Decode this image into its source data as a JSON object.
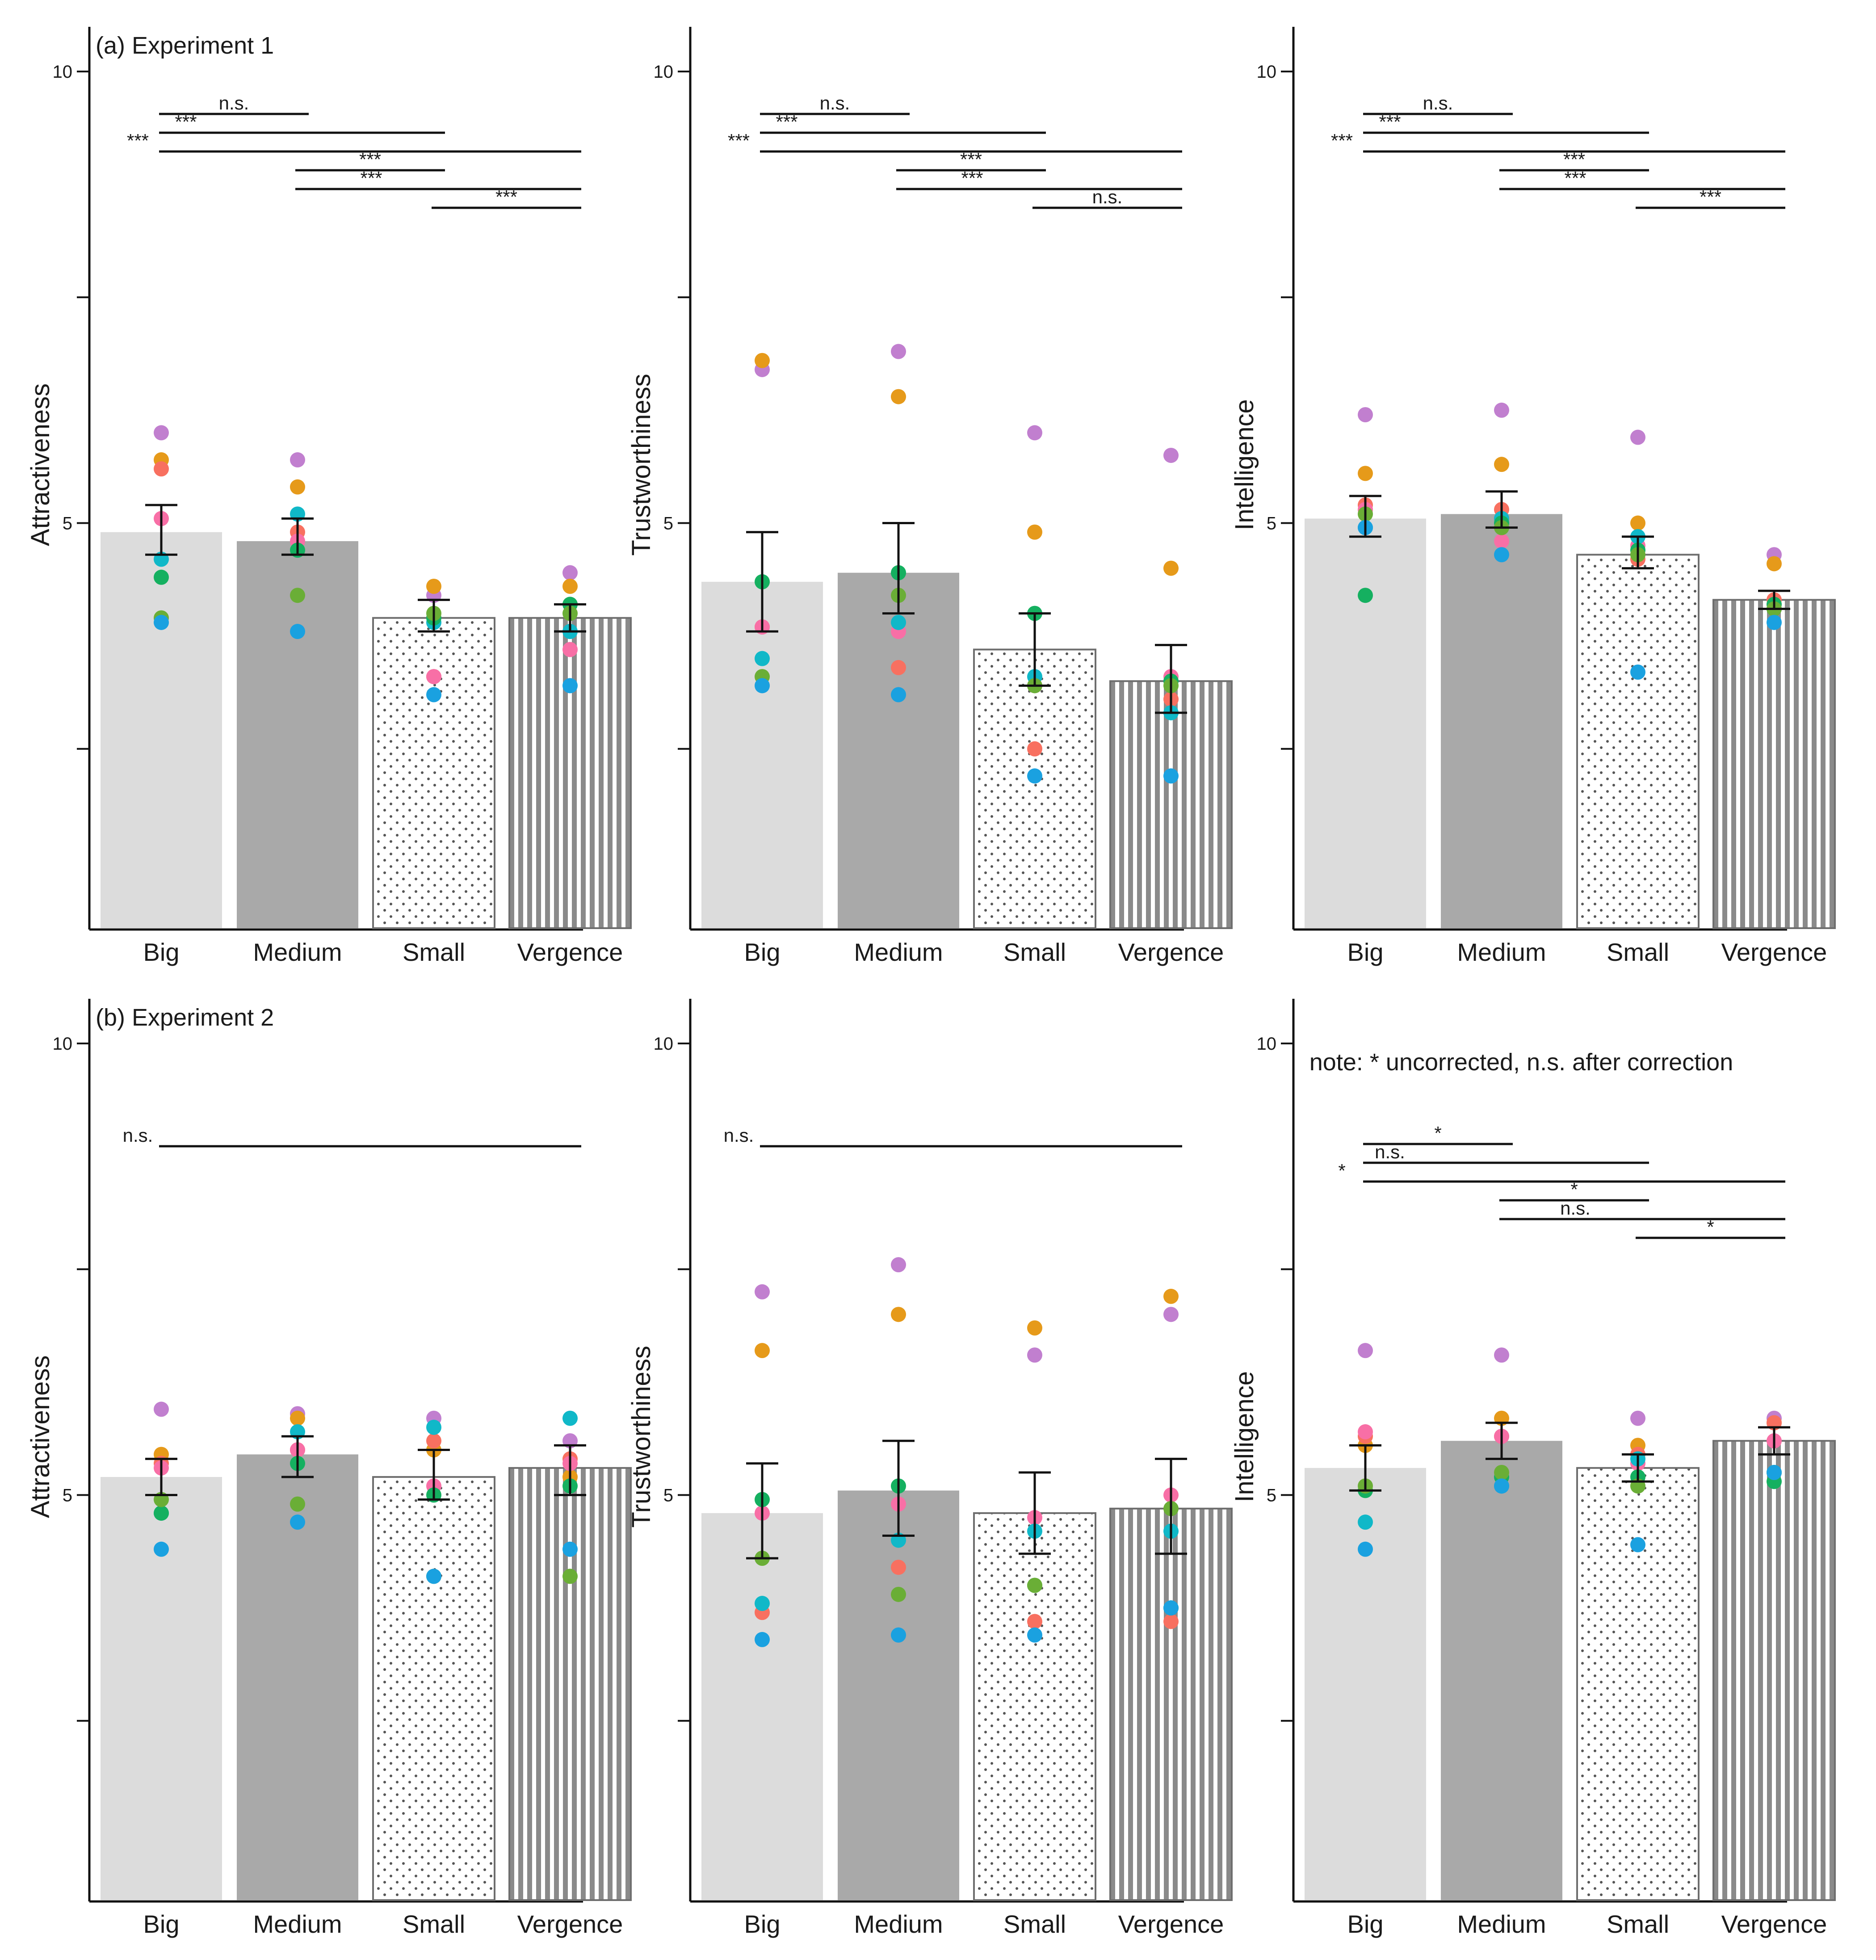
{
  "figure": {
    "categories": [
      "Big",
      "Medium",
      "Small",
      "Vergence"
    ],
    "bar_styles": [
      "light-solid",
      "dark-solid",
      "dotted",
      "striped"
    ],
    "point_colors": [
      "#C17FCF",
      "#E69A1A",
      "#F87060",
      "#F86FA6",
      "#10B8C8",
      "#15B060",
      "#6AAE36",
      "#1AA1E0"
    ],
    "experiment_labels": [
      "(a) Experiment 1",
      "(b) Experiment 2"
    ]
  },
  "chart_data": [
    {
      "type": "bar",
      "experiment": "(a) Experiment 1",
      "ylabel": "Attractiveness",
      "ylim": [
        0.5,
        10
      ],
      "yticks": [
        10,
        5
      ],
      "ytick_minor": [
        7.5,
        2.5
      ],
      "categories": [
        "Big",
        "Medium",
        "Small",
        "Vergence"
      ],
      "means": [
        4.9,
        4.8,
        3.95,
        3.95
      ],
      "error": [
        [
          4.65,
          5.2
        ],
        [
          4.65,
          5.05
        ],
        [
          3.8,
          4.15
        ],
        [
          3.8,
          4.1
        ]
      ],
      "points": [
        [
          6.0,
          5.7,
          5.6,
          5.05,
          4.6,
          4.4,
          3.95,
          3.9
        ],
        [
          5.7,
          5.4,
          4.9,
          4.8,
          5.1,
          4.7,
          4.2,
          3.8
        ],
        [
          4.2,
          4.3,
          3.3,
          3.3,
          3.9,
          3.95,
          4.0,
          3.1
        ],
        [
          4.45,
          4.3,
          4.1,
          3.6,
          3.8,
          4.1,
          4.0,
          3.2
        ]
      ],
      "sig": [
        {
          "from": 0,
          "to": 1,
          "label": "n.s."
        },
        {
          "from": 0,
          "to": 2,
          "label": "***"
        },
        {
          "from": 0,
          "to": 3,
          "label": "***"
        },
        {
          "from": 1,
          "to": 2,
          "label": "***"
        },
        {
          "from": 1,
          "to": 3,
          "label": "***"
        },
        {
          "from": 2,
          "to": 3,
          "label": "***"
        }
      ],
      "note": ""
    },
    {
      "type": "bar",
      "experiment": "",
      "ylabel": "Trustworthiness",
      "ylim": [
        0.5,
        10
      ],
      "yticks": [
        10,
        5
      ],
      "ytick_minor": [
        7.5,
        2.5
      ],
      "categories": [
        "Big",
        "Medium",
        "Small",
        "Vergence"
      ],
      "means": [
        4.35,
        4.45,
        3.6,
        3.25
      ],
      "error": [
        [
          3.8,
          4.9
        ],
        [
          4.0,
          5.0
        ],
        [
          3.2,
          4.0
        ],
        [
          2.9,
          3.65
        ]
      ],
      "points": [
        [
          6.7,
          6.8,
          3.85,
          3.85,
          3.5,
          4.35,
          3.3,
          3.2
        ],
        [
          6.9,
          6.4,
          3.4,
          3.8,
          3.9,
          4.45,
          4.2,
          3.1
        ],
        [
          6.0,
          4.9,
          2.5,
          3.2,
          3.3,
          4.0,
          3.2,
          2.2
        ],
        [
          5.75,
          4.5,
          3.05,
          3.3,
          2.9,
          3.25,
          3.2,
          2.2
        ]
      ],
      "sig": [
        {
          "from": 0,
          "to": 1,
          "label": "n.s."
        },
        {
          "from": 0,
          "to": 2,
          "label": "***"
        },
        {
          "from": 0,
          "to": 3,
          "label": "***"
        },
        {
          "from": 1,
          "to": 2,
          "label": "***"
        },
        {
          "from": 1,
          "to": 3,
          "label": "***"
        },
        {
          "from": 2,
          "to": 3,
          "label": "n.s."
        }
      ],
      "note": ""
    },
    {
      "type": "bar",
      "experiment": "",
      "ylabel": "Intelligence",
      "ylim": [
        0.5,
        10
      ],
      "yticks": [
        10,
        5
      ],
      "ytick_minor": [
        7.5,
        2.5
      ],
      "categories": [
        "Big",
        "Medium",
        "Small",
        "Vergence"
      ],
      "means": [
        5.05,
        5.1,
        4.65,
        4.15
      ],
      "error": [
        [
          4.85,
          5.3
        ],
        [
          4.95,
          5.35
        ],
        [
          4.5,
          4.85
        ],
        [
          4.05,
          4.25
        ]
      ],
      "points": [
        [
          6.2,
          5.55,
          5.2,
          5.15,
          4.95,
          4.2,
          5.1,
          4.95
        ],
        [
          6.25,
          5.65,
          5.15,
          4.8,
          5.05,
          5.0,
          4.95,
          4.65
        ],
        [
          5.95,
          5.0,
          4.6,
          4.75,
          4.85,
          4.7,
          4.65,
          3.35
        ],
        [
          4.65,
          4.55,
          4.15,
          4.1,
          4.05,
          4.1,
          4.05,
          3.9
        ]
      ],
      "sig": [
        {
          "from": 0,
          "to": 1,
          "label": "n.s."
        },
        {
          "from": 0,
          "to": 2,
          "label": "***"
        },
        {
          "from": 0,
          "to": 3,
          "label": "***"
        },
        {
          "from": 1,
          "to": 2,
          "label": "***"
        },
        {
          "from": 1,
          "to": 3,
          "label": "***"
        },
        {
          "from": 2,
          "to": 3,
          "label": "***"
        }
      ],
      "note": ""
    },
    {
      "type": "bar",
      "experiment": "(b) Experiment 2",
      "ylabel": "Attractiveness",
      "ylim": [
        0.5,
        10
      ],
      "yticks": [
        10,
        5
      ],
      "ytick_minor": [
        7.5,
        2.5
      ],
      "categories": [
        "Big",
        "Medium",
        "Small",
        "Vergence"
      ],
      "means": [
        5.2,
        5.45,
        5.2,
        5.3
      ],
      "error": [
        [
          5.0,
          5.4
        ],
        [
          5.2,
          5.65
        ],
        [
          4.95,
          5.5
        ],
        [
          5.0,
          5.55
        ]
      ],
      "points": [
        [
          5.95,
          5.45,
          5.35,
          5.3,
          4.8,
          4.8,
          4.95,
          4.4
        ],
        [
          5.9,
          5.85,
          5.5,
          5.5,
          5.7,
          5.35,
          4.9,
          4.7
        ],
        [
          5.85,
          5.5,
          5.6,
          5.1,
          5.75,
          5.0,
          4.1,
          4.1
        ],
        [
          5.6,
          5.2,
          5.4,
          5.35,
          5.85,
          5.1,
          4.1,
          4.4
        ]
      ],
      "sig": [
        {
          "from": 0,
          "to": 3,
          "label": "n.s."
        }
      ],
      "note": ""
    },
    {
      "type": "bar",
      "experiment": "",
      "ylabel": "Trustworthiness",
      "ylim": [
        0.5,
        10
      ],
      "yticks": [
        10,
        5
      ],
      "ytick_minor": [
        7.5,
        2.5
      ],
      "categories": [
        "Big",
        "Medium",
        "Small",
        "Vergence"
      ],
      "means": [
        4.8,
        5.05,
        4.8,
        4.85
      ],
      "error": [
        [
          4.3,
          5.35
        ],
        [
          4.55,
          5.6
        ],
        [
          4.35,
          5.25
        ],
        [
          4.35,
          5.4
        ]
      ],
      "points": [
        [
          7.25,
          6.6,
          3.7,
          4.8,
          3.8,
          4.95,
          4.3,
          3.4
        ],
        [
          7.55,
          7.0,
          4.2,
          4.9,
          4.5,
          5.1,
          3.9,
          3.45
        ],
        [
          6.55,
          6.85,
          3.6,
          4.75,
          4.6,
          4.0,
          4.0,
          3.45
        ],
        [
          7.0,
          7.2,
          3.6,
          5.0,
          4.6,
          3.75,
          4.85,
          3.75
        ]
      ],
      "sig": [
        {
          "from": 0,
          "to": 3,
          "label": "n.s."
        }
      ],
      "note": ""
    },
    {
      "type": "bar",
      "experiment": "",
      "ylabel": "Intelligence",
      "ylim": [
        0.5,
        10
      ],
      "yticks": [
        10,
        5
      ],
      "ytick_minor": [
        7.5,
        2.5
      ],
      "categories": [
        "Big",
        "Medium",
        "Small",
        "Vergence"
      ],
      "means": [
        5.3,
        5.6,
        5.3,
        5.6
      ],
      "error": [
        [
          5.05,
          5.55
        ],
        [
          5.4,
          5.8
        ],
        [
          5.15,
          5.45
        ],
        [
          5.45,
          5.75
        ]
      ],
      "points": [
        [
          6.6,
          5.55,
          5.65,
          5.7,
          4.7,
          5.05,
          5.1,
          4.4
        ],
        [
          6.55,
          5.85,
          5.65,
          5.65,
          5.1,
          5.2,
          5.25,
          5.1
        ],
        [
          5.85,
          5.55,
          5.45,
          5.35,
          5.4,
          5.2,
          5.1,
          4.45
        ],
        [
          5.85,
          5.8,
          5.8,
          5.6,
          5.25,
          5.15,
          5.25,
          5.25
        ]
      ],
      "sig": [
        {
          "from": 0,
          "to": 1,
          "label": "*"
        },
        {
          "from": 0,
          "to": 2,
          "label": "n.s."
        },
        {
          "from": 0,
          "to": 3,
          "label": "*"
        },
        {
          "from": 1,
          "to": 2,
          "label": "*"
        },
        {
          "from": 1,
          "to": 3,
          "label": "n.s."
        },
        {
          "from": 2,
          "to": 3,
          "label": "*"
        }
      ],
      "note": "note: * uncorrected, n.s. after correction"
    }
  ]
}
